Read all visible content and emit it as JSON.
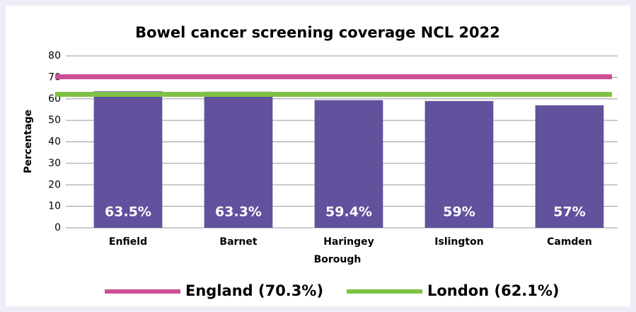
{
  "chart_data": {
    "type": "bar",
    "title": "Bowel cancer screening coverage NCL 2022",
    "x_label": "Borough",
    "y_label": "Percentage",
    "categories": [
      "Enfield",
      "Barnet",
      "Haringey",
      "Islington",
      "Camden"
    ],
    "values": [
      63.5,
      63.3,
      59.4,
      59,
      57
    ],
    "value_labels": [
      "63.5%",
      "63.3%",
      "59.4%",
      "59%",
      "57%"
    ],
    "color": "#62519c",
    "ylim": [
      0,
      80
    ],
    "yticks": [
      0,
      10,
      20,
      30,
      40,
      50,
      60,
      70,
      80
    ],
    "grid": true,
    "reference_lines": [
      {
        "name": "England (70.3%)",
        "value": 70.3,
        "color": "#cc4f94"
      },
      {
        "name": "London (62.1%)",
        "value": 62.1,
        "color": "#7dc242"
      }
    ],
    "legend": "bottom"
  }
}
